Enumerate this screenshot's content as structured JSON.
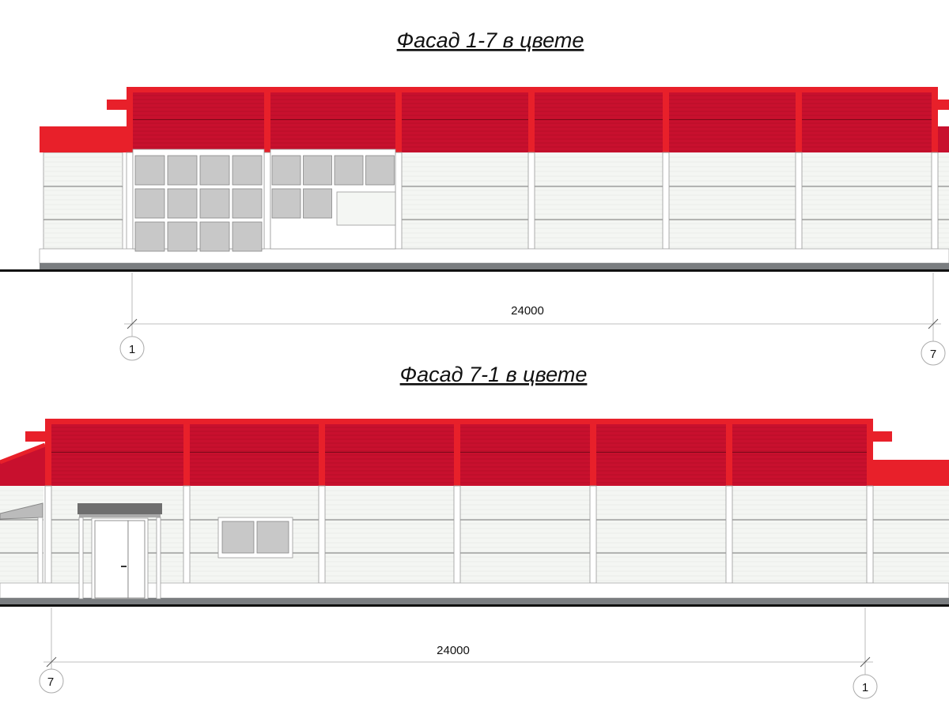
{
  "facades": [
    {
      "title": "Фасад 1-7 в цвете",
      "dimension": "24000",
      "axis_left": "1",
      "axis_right": "7"
    },
    {
      "title": "Фасад 7-1 в цвете",
      "dimension": "24000",
      "axis_left": "7",
      "axis_right": "1"
    }
  ],
  "colors": {
    "roof_red": "#c8102e",
    "trim_red": "#e8202a",
    "wall": "#f4f6f3",
    "glass": "#c8c8c8",
    "plinth_strip": "#7a7d80",
    "canopy": "#6e6e6e"
  }
}
